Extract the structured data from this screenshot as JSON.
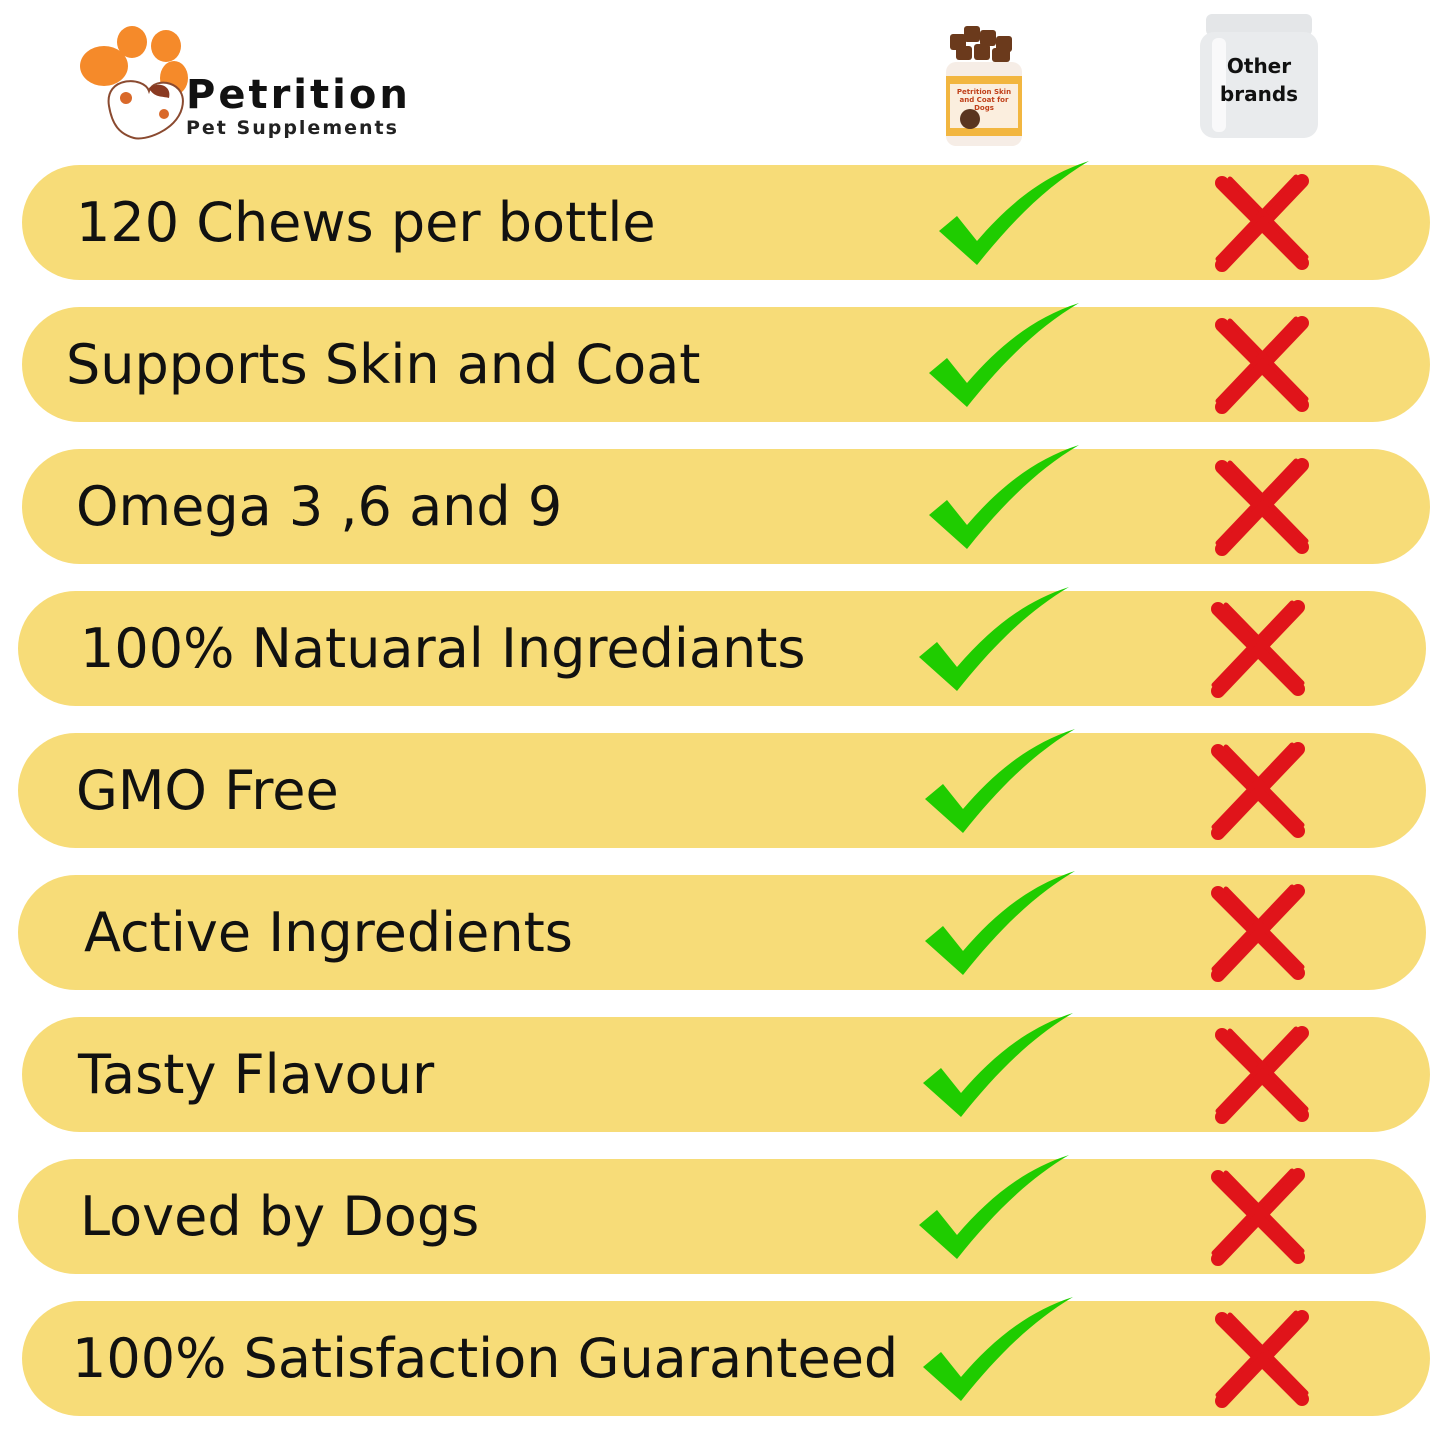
{
  "brand": {
    "name": "Petrition",
    "tagline": "Pet Supplements"
  },
  "columns": {
    "own_product_jar_text": "Petrition Skin and Coat for Dogs",
    "other_label_line1": "Other",
    "other_label_line2": "brands"
  },
  "colors": {
    "row_bg": "#F7DC78",
    "check": "#1FCC00",
    "cross": "#E0141A",
    "paw": "#F58A2A"
  },
  "rows": [
    {
      "label": "120 Chews per bottle",
      "ours": "check-icon",
      "others": "cross-icon"
    },
    {
      "label": "Supports  Skin and Coat",
      "ours": "check-icon",
      "others": "cross-icon"
    },
    {
      "label": "Omega 3 ,6 and 9",
      "ours": "check-icon",
      "others": "cross-icon"
    },
    {
      "label": "100% Natuaral Ingrediants",
      "ours": "check-icon",
      "others": "cross-icon"
    },
    {
      "label": "GMO Free",
      "ours": "check-icon",
      "others": "cross-icon"
    },
    {
      "label": "Active Ingredients",
      "ours": "check-icon",
      "others": "cross-icon"
    },
    {
      "label": "Tasty Flavour",
      "ours": "check-icon",
      "others": "cross-icon"
    },
    {
      "label": "Loved by Dogs",
      "ours": "check-icon",
      "others": "cross-icon"
    },
    {
      "label": "100% Satisfaction Guaranteed",
      "ours": "check-icon",
      "others": "cross-icon"
    }
  ]
}
